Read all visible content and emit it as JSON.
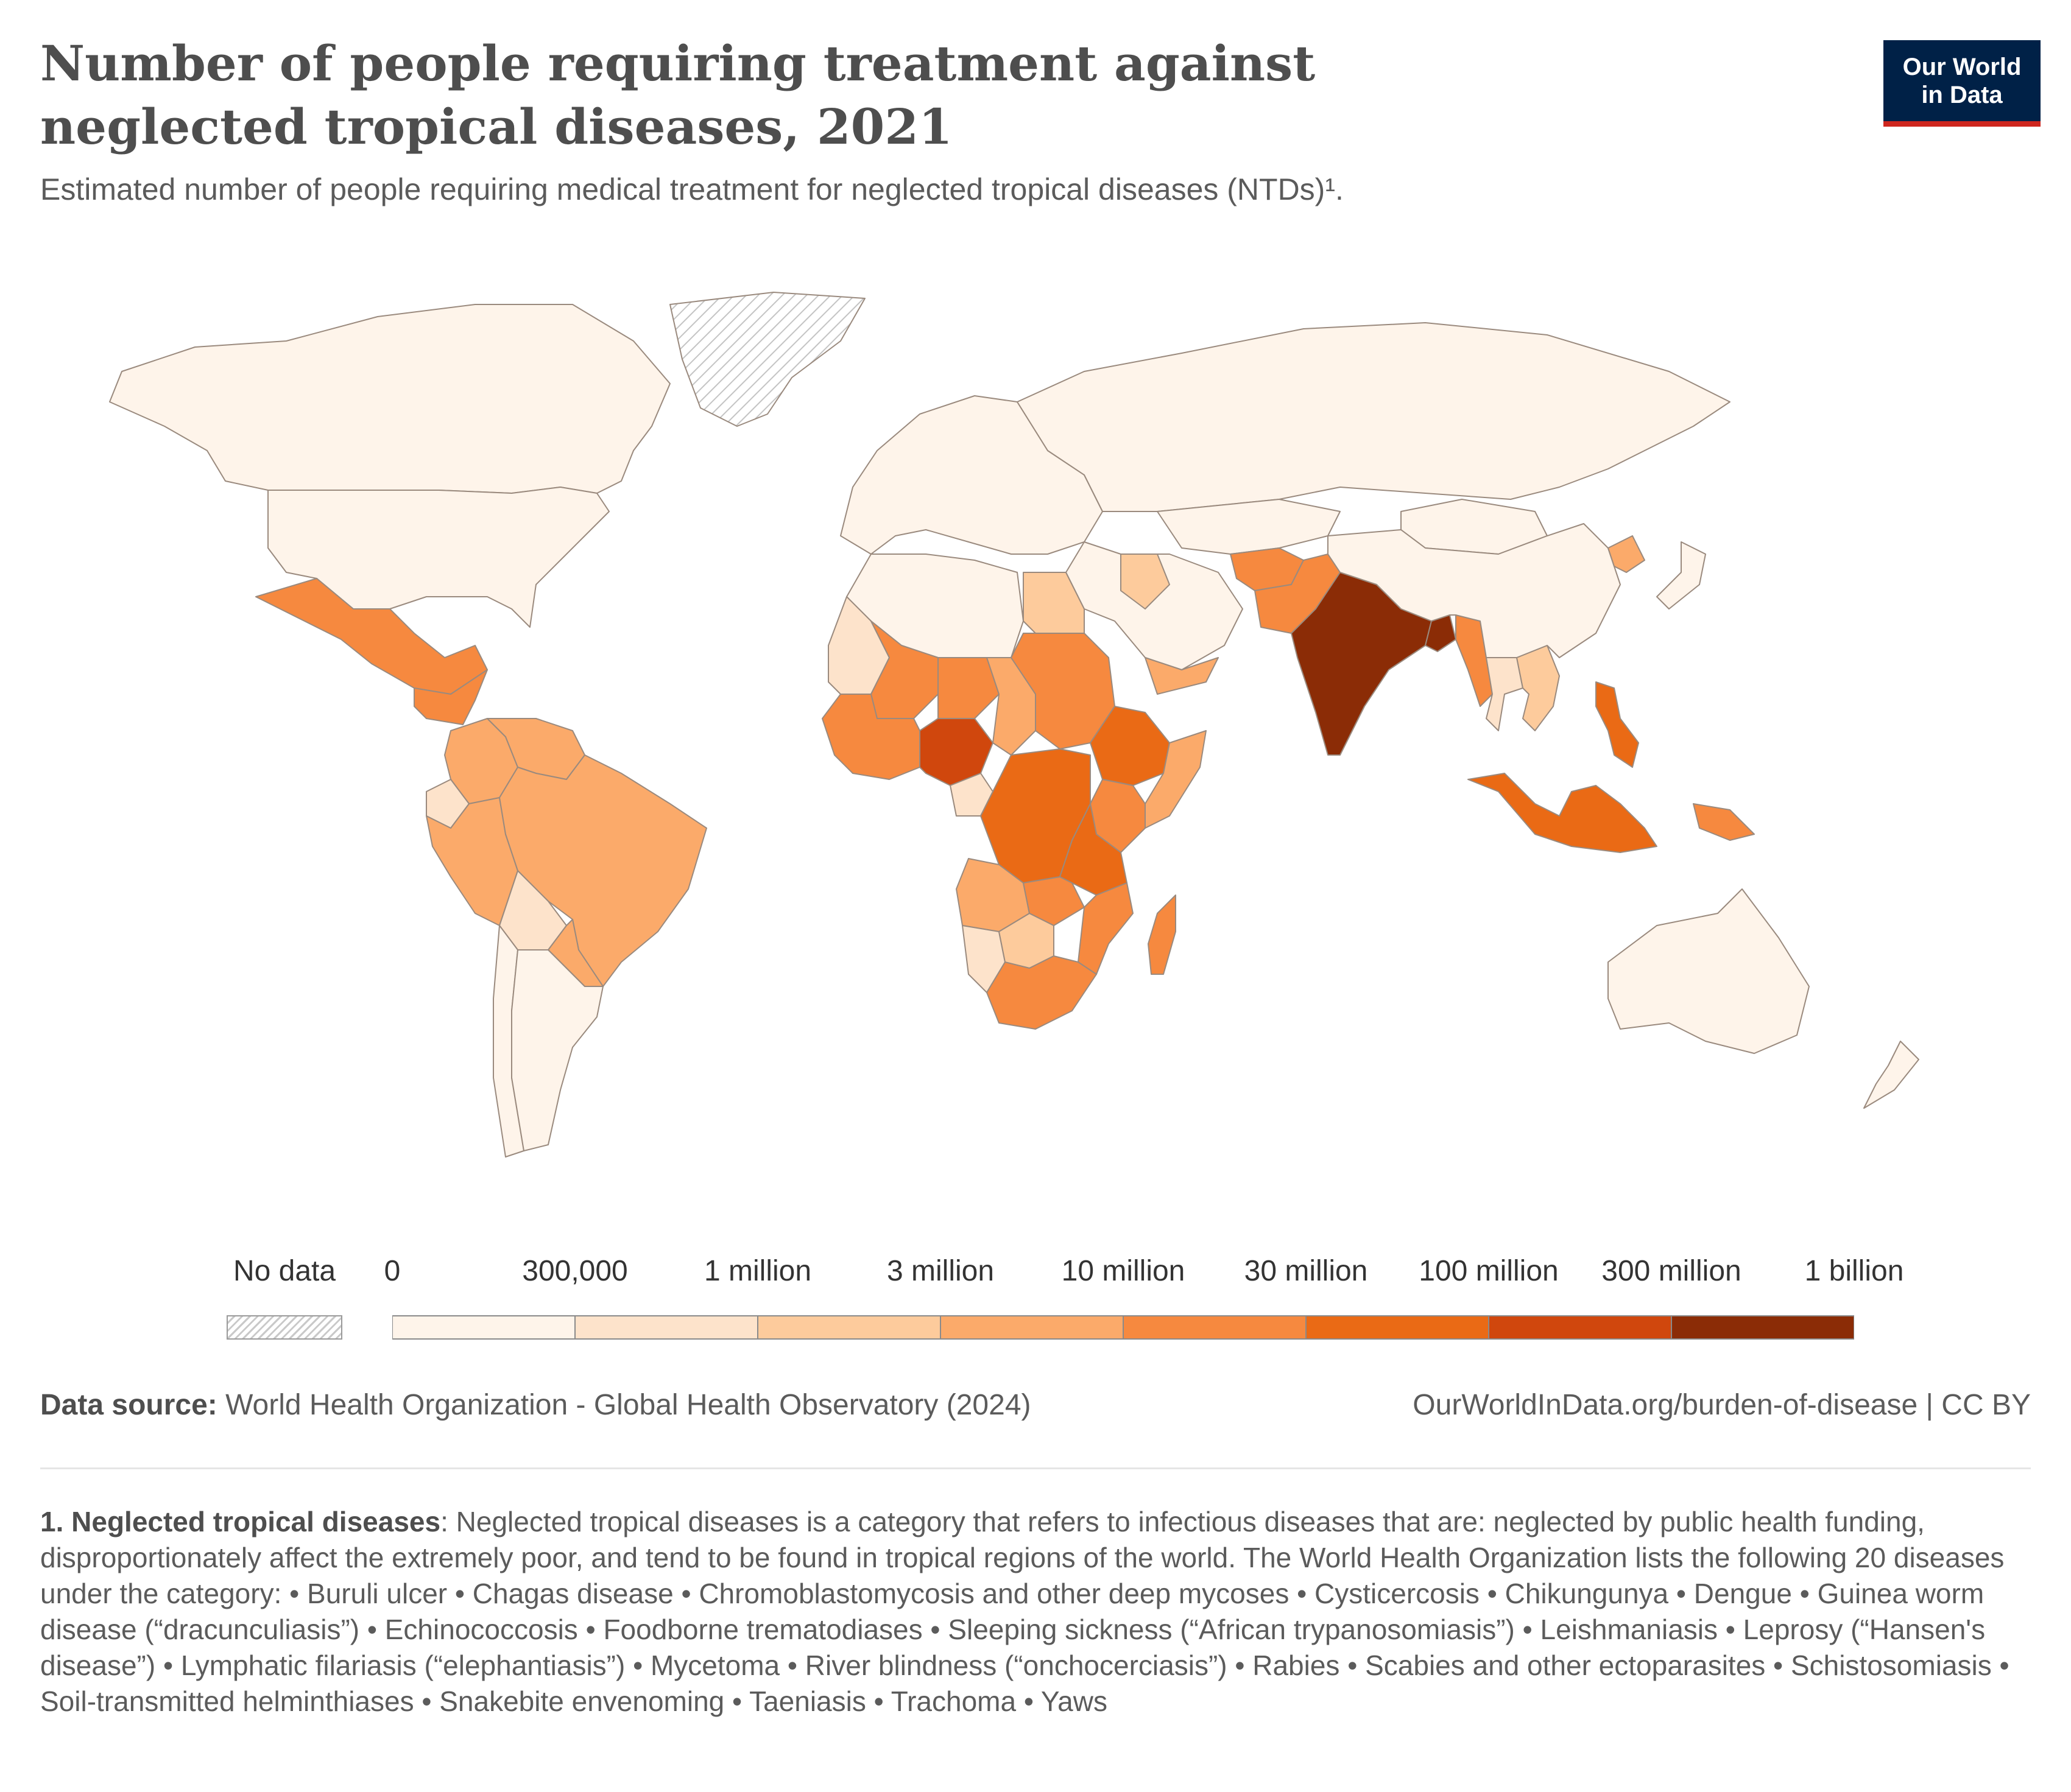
{
  "header": {
    "title": "Number of people requiring treatment against neglected tropical diseases, 2021",
    "subtitle": "Estimated number of people requiring medical treatment for neglected tropical diseases (NTDs)¹.",
    "logo_line1": "Our World",
    "logo_line2": "in Data"
  },
  "colors": {
    "logo_bg": "#002147",
    "logo_accent": "#ce261e",
    "border": "#9a8a7e",
    "scale": [
      "#fef4ea",
      "#fde3cb",
      "#fdcb9c",
      "#fbaa6a",
      "#f6893f",
      "#ea6a15",
      "#d0470d",
      "#8b2c06"
    ]
  },
  "legend": {
    "no_data_label": "No data",
    "bins": [
      {
        "label": "0",
        "color": "#fef4ea"
      },
      {
        "label": "300,000",
        "color": "#fde3cb"
      },
      {
        "label": "1 million",
        "color": "#fdcb9c"
      },
      {
        "label": "3 million",
        "color": "#fbaa6a"
      },
      {
        "label": "10 million",
        "color": "#f6893f"
      },
      {
        "label": "30 million",
        "color": "#ea6a15"
      },
      {
        "label": "100 million",
        "color": "#d0470d"
      },
      {
        "label": "300 million",
        "color": "#8b2c06"
      }
    ],
    "max_label": "1 billion"
  },
  "map_data": {
    "type": "choropleth",
    "year": "2021",
    "regions": [
      {
        "region": "Canada",
        "bin": 0
      },
      {
        "region": "United States",
        "bin": 0
      },
      {
        "region": "Greenland",
        "bin": -1
      },
      {
        "region": "Mexico",
        "bin": 4
      },
      {
        "region": "Central America",
        "bin": 4
      },
      {
        "region": "Colombia",
        "bin": 3
      },
      {
        "region": "Venezuela",
        "bin": 3
      },
      {
        "region": "Peru",
        "bin": 3
      },
      {
        "region": "Ecuador",
        "bin": 1
      },
      {
        "region": "Bolivia",
        "bin": 1
      },
      {
        "region": "Brazil",
        "bin": 3
      },
      {
        "region": "Paraguay",
        "bin": 3
      },
      {
        "region": "Argentina",
        "bin": 0
      },
      {
        "region": "Chile",
        "bin": 0
      },
      {
        "region": "Europe",
        "bin": 0
      },
      {
        "region": "Russia",
        "bin": 0
      },
      {
        "region": "North Africa",
        "bin": 0
      },
      {
        "region": "Mauritania",
        "bin": 1
      },
      {
        "region": "Mali",
        "bin": 4
      },
      {
        "region": "Niger",
        "bin": 4
      },
      {
        "region": "Chad",
        "bin": 3
      },
      {
        "region": "Sudan",
        "bin": 4
      },
      {
        "region": "Egypt",
        "bin": 2
      },
      {
        "region": "West Africa coast",
        "bin": 4
      },
      {
        "region": "Nigeria",
        "bin": 6
      },
      {
        "region": "Ethiopia",
        "bin": 5
      },
      {
        "region": "Somalia",
        "bin": 3
      },
      {
        "region": "Kenya",
        "bin": 4
      },
      {
        "region": "DR Congo",
        "bin": 5
      },
      {
        "region": "Tanzania",
        "bin": 5
      },
      {
        "region": "Gabon",
        "bin": 1
      },
      {
        "region": "Angola",
        "bin": 3
      },
      {
        "region": "Zambia",
        "bin": 4
      },
      {
        "region": "Mozambique",
        "bin": 4
      },
      {
        "region": "Namibia",
        "bin": 1
      },
      {
        "region": "Botswana",
        "bin": 2
      },
      {
        "region": "South Africa",
        "bin": 4
      },
      {
        "region": "Madagascar",
        "bin": 4
      },
      {
        "region": "Middle East",
        "bin": 0
      },
      {
        "region": "Iraq",
        "bin": 2
      },
      {
        "region": "Yemen",
        "bin": 3
      },
      {
        "region": "Central Asia",
        "bin": 0
      },
      {
        "region": "Afghanistan",
        "bin": 4
      },
      {
        "region": "Pakistan",
        "bin": 4
      },
      {
        "region": "India",
        "bin": 7
      },
      {
        "region": "Nepal",
        "bin": 4
      },
      {
        "region": "Bangladesh",
        "bin": 7
      },
      {
        "region": "Myanmar",
        "bin": 4
      },
      {
        "region": "Thailand",
        "bin": 1
      },
      {
        "region": "Vietnam",
        "bin": 2
      },
      {
        "region": "China",
        "bin": 0
      },
      {
        "region": "Mongolia",
        "bin": 0
      },
      {
        "region": "North Korea",
        "bin": 3
      },
      {
        "region": "Japan",
        "bin": 0
      },
      {
        "region": "Philippines",
        "bin": 5
      },
      {
        "region": "Indonesia",
        "bin": 5
      },
      {
        "region": "Papua New Guinea",
        "bin": 4
      },
      {
        "region": "Australia",
        "bin": 0
      },
      {
        "region": "New Zealand",
        "bin": 0
      }
    ]
  },
  "footer": {
    "source_label": "Data source:",
    "source_text": " World Health Organization - Global Health Observatory (2024)",
    "url": "OurWorldInData.org/burden-of-disease | CC BY",
    "note_label": "1. Neglected tropical diseases",
    "note_text": ": Neglected tropical diseases is a category that refers to infectious diseases that are: neglected by public health funding, disproportionately affect the extremely poor, and tend to be found in tropical regions of the world. The World Health Organization lists the following 20 diseases under the category: • Buruli ulcer • Chagas disease • Chromoblastomycosis and other deep mycoses • Cysticercosis • Chikungunya • Dengue • Guinea worm disease (“dracunculiasis”) • Echinococcosis • Foodborne trematodiases • Sleeping sickness (“African trypanosomiasis”) • Leishmaniasis • Leprosy (“Hansen's disease”) • Lymphatic filariasis (“elephantiasis”) • Mycetoma • River blindness (“onchocerciasis”) • Rabies • Scabies and other ectoparasites • Schistosomiasis • Soil-transmitted helminthiases • Snakebite envenoming • Taeniasis • Trachoma • Yaws"
  }
}
